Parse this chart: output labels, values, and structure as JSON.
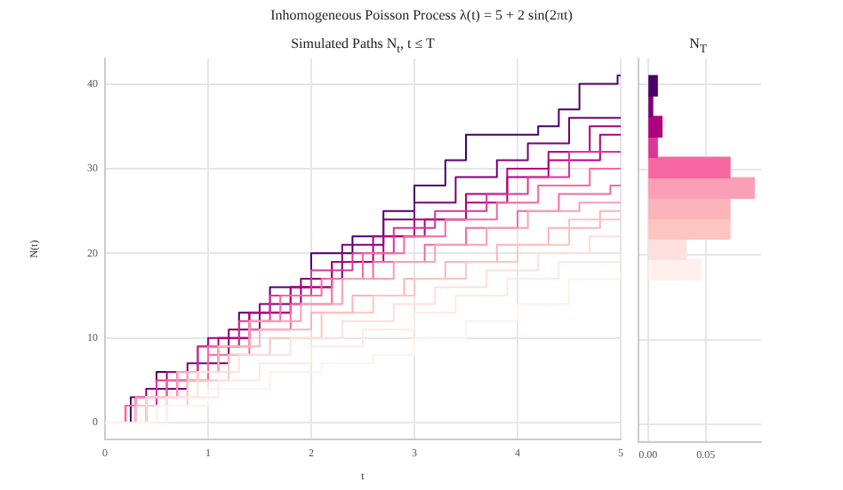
{
  "chart_data": [
    {
      "type": "step",
      "title": "Inhomogeneous Poisson Process λ(t) = 5 + 2 sin(2πt)",
      "subtitle": "Simulated Paths N$_{t}$, t ≤ T",
      "xlabel": "t",
      "ylabel": "N(t)",
      "xlim": [
        0,
        5
      ],
      "ylim": [
        -2,
        43
      ],
      "xticks": [
        0,
        1,
        2,
        3,
        4,
        5
      ],
      "yticks": [
        0,
        10,
        20,
        30,
        40
      ],
      "grid": true,
      "legend": false,
      "marker": "none",
      "line_style": "solid",
      "series": [
        {
          "color": "#fff0ee",
          "x": [
            0,
            0.5,
            1.0,
            1.6,
            2.1,
            2.6,
            3.0,
            3.5,
            4.0,
            4.5,
            5
          ],
          "values": [
            0,
            2,
            4,
            6,
            7,
            8,
            10,
            12,
            14,
            17,
            18
          ]
        },
        {
          "color": "#fde9e6",
          "x": [
            0,
            0.6,
            1.1,
            1.5,
            2.0,
            2.5,
            3.0,
            3.4,
            3.9,
            4.4,
            5
          ],
          "values": [
            0,
            3,
            5,
            7,
            9,
            11,
            13,
            15,
            17,
            19,
            20
          ]
        },
        {
          "color": "#fde0dd",
          "x": [
            0,
            0.4,
            0.9,
            1.3,
            1.8,
            2.3,
            2.8,
            3.2,
            3.7,
            4.2,
            4.7,
            5
          ],
          "values": [
            0,
            3,
            6,
            8,
            10,
            12,
            14,
            16,
            18,
            20,
            22,
            22
          ]
        },
        {
          "color": "#fcc5c0",
          "x": [
            0,
            0.3,
            0.8,
            1.2,
            1.6,
            2.1,
            2.6,
            3.0,
            3.5,
            4.0,
            4.5,
            5
          ],
          "values": [
            0,
            2,
            5,
            8,
            10,
            13,
            15,
            17,
            19,
            21,
            24,
            24
          ]
        },
        {
          "color": "#fbb4b9",
          "x": [
            0,
            0.4,
            0.8,
            1.1,
            1.5,
            2.0,
            2.4,
            2.9,
            3.3,
            3.8,
            4.3,
            4.8,
            5
          ],
          "values": [
            0,
            3,
            6,
            9,
            11,
            13,
            15,
            17,
            19,
            21,
            23,
            25,
            25
          ]
        },
        {
          "color": "#fa9fb5",
          "x": [
            0,
            0.3,
            0.7,
            1.1,
            1.4,
            1.9,
            2.3,
            2.8,
            3.2,
            3.7,
            4.1,
            4.6,
            5
          ],
          "values": [
            0,
            3,
            6,
            9,
            12,
            14,
            17,
            19,
            21,
            23,
            25,
            26,
            26
          ]
        },
        {
          "color": "#f768a1",
          "x": [
            0,
            0.2,
            0.6,
            1.0,
            1.4,
            1.8,
            2.2,
            2.6,
            3.1,
            3.5,
            4.0,
            4.4,
            4.9,
            5
          ],
          "values": [
            0,
            2,
            5,
            8,
            11,
            14,
            17,
            19,
            21,
            23,
            25,
            27,
            28,
            28
          ]
        },
        {
          "color": "#f768a1",
          "x": [
            0,
            0.3,
            0.7,
            1.0,
            1.4,
            1.7,
            2.1,
            2.5,
            2.9,
            3.3,
            3.8,
            4.2,
            4.7,
            5
          ],
          "values": [
            0,
            3,
            6,
            9,
            12,
            15,
            17,
            20,
            22,
            24,
            26,
            28,
            30,
            30
          ]
        },
        {
          "color": "#dd3497",
          "x": [
            0,
            0.2,
            0.5,
            0.9,
            1.3,
            1.6,
            2.0,
            2.4,
            2.8,
            3.2,
            3.7,
            4.1,
            4.5,
            5
          ],
          "values": [
            0,
            2,
            5,
            9,
            12,
            15,
            18,
            20,
            23,
            25,
            27,
            29,
            32,
            32
          ]
        },
        {
          "color": "#ae017e",
          "x": [
            0,
            0.3,
            0.6,
            1.0,
            1.4,
            1.8,
            2.2,
            2.7,
            3.1,
            3.5,
            3.9,
            4.3,
            4.8,
            5
          ],
          "values": [
            0,
            3,
            6,
            10,
            13,
            16,
            19,
            22,
            24,
            26,
            29,
            31,
            34,
            34
          ]
        },
        {
          "color": "#ae017e",
          "x": [
            0,
            0.3,
            0.7,
            1.1,
            1.4,
            1.8,
            2.2,
            2.6,
            3.0,
            3.5,
            3.9,
            4.3,
            4.7,
            5
          ],
          "values": [
            0,
            3,
            6,
            10,
            13,
            16,
            19,
            22,
            24,
            27,
            30,
            32,
            35,
            35
          ]
        },
        {
          "color": "#7a0177",
          "x": [
            0,
            0.4,
            0.8,
            1.2,
            1.5,
            1.9,
            2.3,
            2.7,
            3.0,
            3.4,
            3.8,
            4.1,
            4.5,
            5
          ],
          "values": [
            0,
            4,
            7,
            11,
            14,
            17,
            21,
            24,
            26,
            29,
            31,
            33,
            36,
            36
          ]
        },
        {
          "color": "#49006a",
          "x": [
            0,
            0.25,
            0.5,
            0.9,
            1.3,
            1.6,
            2.0,
            2.4,
            2.7,
            3.0,
            3.3,
            3.5,
            4.2,
            4.4,
            4.6,
            4.97,
            5
          ],
          "values": [
            0,
            3,
            6,
            9,
            13,
            16,
            20,
            22,
            25,
            28,
            31,
            34,
            35,
            37,
            40,
            41,
            41
          ]
        }
      ]
    },
    {
      "type": "histogram",
      "orientation": "horizontal",
      "title": "N$_{T}$",
      "bins": [
        17,
        19.4,
        21.8,
        24.2,
        26.6,
        29,
        31.4,
        33.8,
        36.2,
        38.6,
        41
      ],
      "values": [
        0.046,
        0.033,
        0.071,
        0.071,
        0.092,
        0.071,
        0.008,
        0.012,
        0.004,
        0.008
      ],
      "colors": [
        "#fff0ee",
        "#fde0dd",
        "#fcc5c0",
        "#fbb4b9",
        "#fa9fb5",
        "#f768a1",
        "#dd3497",
        "#ae017e",
        "#7a0177",
        "#49006a"
      ],
      "xlim": [
        -0.008,
        0.098
      ],
      "xticks": [
        {
          "value": 0,
          "label": "0.00"
        },
        {
          "value": 0.05,
          "label": "0.05"
        }
      ],
      "ylim": [
        -2,
        43
      ],
      "yticks": [
        0,
        10,
        20,
        30,
        40
      ],
      "grid": true,
      "tick_labels": "x",
      "legend": false
    }
  ]
}
